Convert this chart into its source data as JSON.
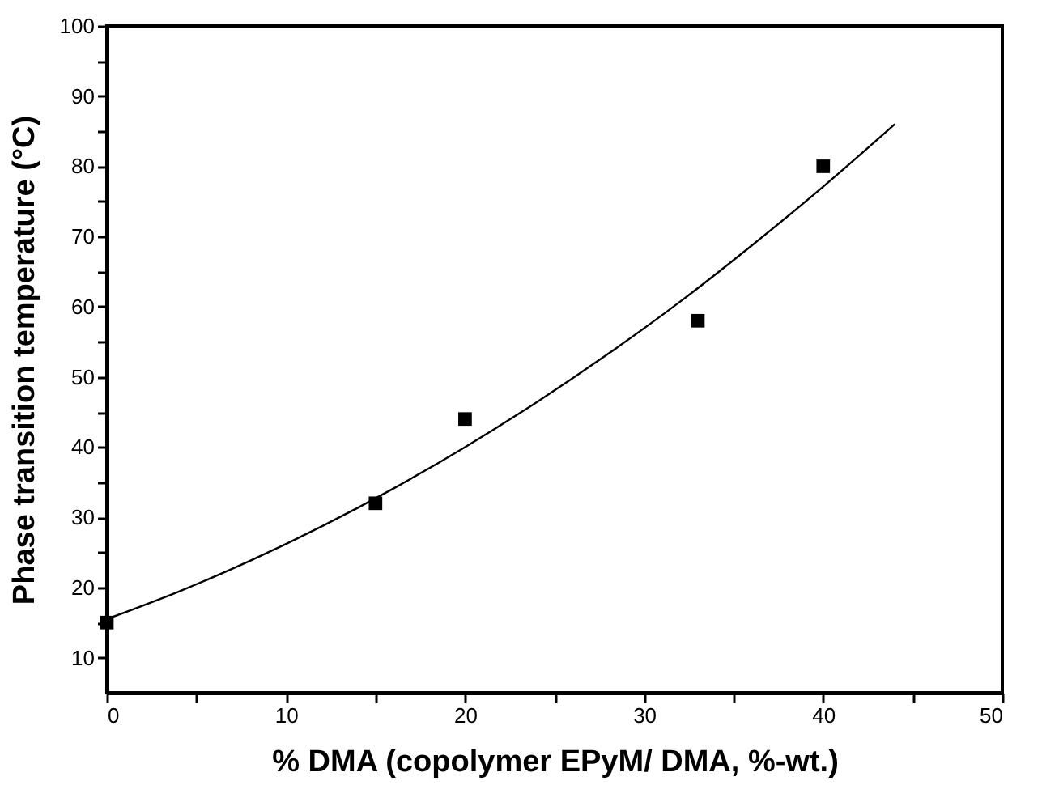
{
  "chart_data": {
    "type": "scatter",
    "xlabel": "% DMA  (copolymer EPyM/ DMA, %-wt.)",
    "ylabel": "Phase transition temperature (°C)",
    "xlim": [
      0,
      50
    ],
    "ylim": [
      5,
      100
    ],
    "xticks": [
      0,
      {
        "value": 5,
        "label": null
      },
      10,
      {
        "value": 15,
        "label": null
      },
      20,
      {
        "value": 25,
        "label": null
      },
      30,
      {
        "value": 35,
        "label": null
      },
      40,
      {
        "value": 45,
        "label": null
      },
      50
    ],
    "yticks": [
      10,
      {
        "value": 15,
        "label": null
      },
      20,
      {
        "value": 25,
        "label": null
      },
      30,
      {
        "value": 35,
        "label": null
      },
      40,
      {
        "value": 45,
        "label": null
      },
      50,
      {
        "value": 55,
        "label": null
      },
      60,
      {
        "value": 65,
        "label": null
      },
      70,
      {
        "value": 75,
        "label": null
      },
      80,
      {
        "value": 85,
        "label": null
      },
      90,
      {
        "value": 95,
        "label": null
      },
      100
    ],
    "marker": "square",
    "grid": false,
    "series": [
      {
        "type": "scatter",
        "color": "#000000",
        "x": [
          0,
          15,
          20,
          33,
          40
        ],
        "values": [
          15,
          32,
          44,
          58,
          80
        ]
      },
      {
        "type": "line",
        "color": "#000000",
        "marker": "none",
        "x": [
          0,
          4,
          8,
          12,
          16,
          20,
          24,
          28,
          32,
          36,
          40,
          44
        ],
        "values": [
          15.5,
          19.4,
          23.8,
          28.7,
          34.1,
          40,
          46.4,
          53.3,
          60.7,
          68.7,
          77.1,
          86
        ]
      }
    ]
  }
}
